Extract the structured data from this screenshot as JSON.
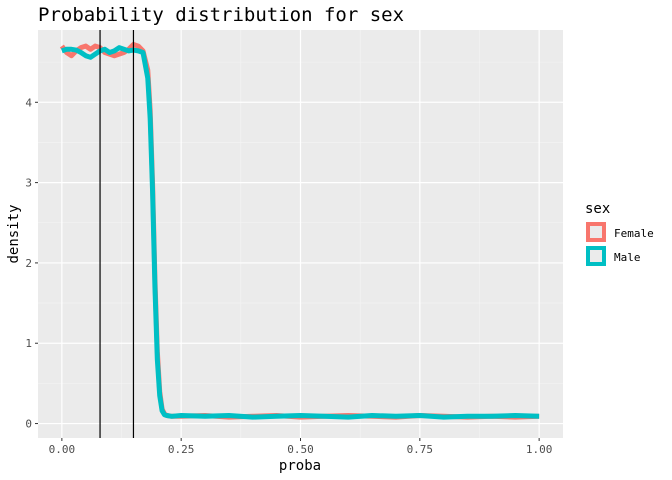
{
  "chart_data": {
    "type": "line",
    "title": "Probability distribution for sex",
    "xlabel": "proba",
    "ylabel": "density",
    "xlim": [
      -0.05,
      1.05
    ],
    "ylim": [
      -0.18,
      4.9
    ],
    "x_ticks": [
      0.0,
      0.25,
      0.5,
      0.75,
      1.0
    ],
    "x_tick_labels": [
      "0.00",
      "0.25",
      "0.50",
      "0.75",
      "1.00"
    ],
    "y_ticks": [
      0,
      1,
      2,
      3,
      4
    ],
    "y_tick_labels": [
      "0",
      "1",
      "2",
      "3",
      "4"
    ],
    "grid": true,
    "vlines": [
      0.08,
      0.15
    ],
    "legend": {
      "title": "sex",
      "position": "right",
      "entries": [
        {
          "label": "Female",
          "color": "#F8766D"
        },
        {
          "label": "Male",
          "color": "#00BFC4"
        }
      ]
    },
    "series": [
      {
        "name": "Female",
        "color": "#F8766D",
        "x": [
          0.0,
          0.01,
          0.02,
          0.03,
          0.04,
          0.05,
          0.06,
          0.07,
          0.08,
          0.09,
          0.1,
          0.11,
          0.12,
          0.13,
          0.14,
          0.15,
          0.16,
          0.17,
          0.18,
          0.185,
          0.19,
          0.195,
          0.2,
          0.205,
          0.21,
          0.215,
          0.22,
          0.23,
          0.25,
          0.3,
          0.35,
          0.4,
          0.45,
          0.5,
          0.55,
          0.6,
          0.65,
          0.7,
          0.75,
          0.8,
          0.85,
          0.9,
          0.95,
          1.0
        ],
        "y": [
          4.7,
          4.62,
          4.58,
          4.64,
          4.68,
          4.7,
          4.66,
          4.7,
          4.68,
          4.62,
          4.6,
          4.58,
          4.6,
          4.62,
          4.66,
          4.72,
          4.7,
          4.64,
          4.4,
          3.9,
          3.0,
          1.8,
          0.9,
          0.4,
          0.18,
          0.12,
          0.1,
          0.09,
          0.09,
          0.1,
          0.08,
          0.09,
          0.1,
          0.08,
          0.09,
          0.1,
          0.09,
          0.08,
          0.1,
          0.09,
          0.08,
          0.09,
          0.08,
          0.09
        ]
      },
      {
        "name": "Male",
        "color": "#00BFC4",
        "x": [
          0.0,
          0.01,
          0.02,
          0.03,
          0.04,
          0.05,
          0.06,
          0.07,
          0.08,
          0.09,
          0.1,
          0.11,
          0.12,
          0.13,
          0.14,
          0.15,
          0.16,
          0.17,
          0.18,
          0.185,
          0.19,
          0.195,
          0.2,
          0.205,
          0.21,
          0.215,
          0.22,
          0.23,
          0.25,
          0.3,
          0.35,
          0.4,
          0.45,
          0.5,
          0.55,
          0.6,
          0.65,
          0.7,
          0.75,
          0.8,
          0.85,
          0.9,
          0.95,
          1.0
        ],
        "y": [
          4.64,
          4.66,
          4.66,
          4.65,
          4.62,
          4.58,
          4.56,
          4.6,
          4.64,
          4.66,
          4.62,
          4.64,
          4.68,
          4.66,
          4.64,
          4.65,
          4.64,
          4.62,
          4.3,
          3.8,
          2.9,
          1.7,
          0.8,
          0.35,
          0.16,
          0.11,
          0.1,
          0.09,
          0.1,
          0.09,
          0.1,
          0.08,
          0.09,
          0.1,
          0.09,
          0.08,
          0.1,
          0.09,
          0.1,
          0.08,
          0.09,
          0.09,
          0.1,
          0.09
        ]
      }
    ]
  }
}
